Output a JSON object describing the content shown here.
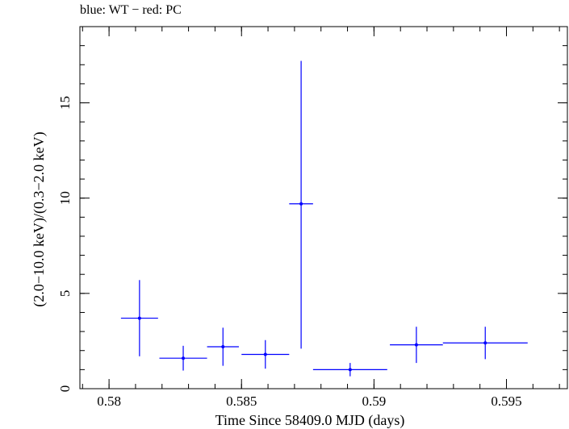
{
  "chart_data": {
    "type": "scatter",
    "title": "blue: WT − red: PC",
    "xlabel": "Time Since 58409.0 MJD (days)",
    "ylabel": "(2.0−10.0 keV)/(0.3−2.0 keV)",
    "xlim": [
      0.5789,
      0.5973
    ],
    "ylim": [
      0,
      19
    ],
    "xticks": {
      "major": [
        0.58,
        0.585,
        0.59,
        0.595
      ],
      "labels": [
        "0.58",
        "0.585",
        "0.59",
        "0.595"
      ],
      "minor_step": 0.001
    },
    "yticks": {
      "major": [
        0,
        5,
        10,
        15
      ],
      "labels": [
        "0",
        "5",
        "10",
        "15"
      ],
      "minor_step": 1
    },
    "grid": false,
    "series": [
      {
        "color": "#0000ff",
        "points": [
          {
            "x": 0.58115,
            "xerr_lo": 0.0007,
            "xerr_hi": 0.0007,
            "y": 3.7,
            "yerr_lo": 2.0,
            "yerr_hi": 2.0
          },
          {
            "x": 0.5828,
            "xerr_lo": 0.0009,
            "xerr_hi": 0.0009,
            "y": 1.6,
            "yerr_lo": 0.65,
            "yerr_hi": 0.65
          },
          {
            "x": 0.5843,
            "xerr_lo": 0.0006,
            "xerr_hi": 0.0006,
            "y": 2.2,
            "yerr_lo": 1.0,
            "yerr_hi": 1.0
          },
          {
            "x": 0.5859,
            "xerr_lo": 0.0009,
            "xerr_hi": 0.0009,
            "y": 1.8,
            "yerr_lo": 0.75,
            "yerr_hi": 0.75
          },
          {
            "x": 0.58725,
            "xerr_lo": 0.00045,
            "xerr_hi": 0.00045,
            "y": 9.7,
            "yerr_lo": 7.6,
            "yerr_hi": 7.5
          },
          {
            "x": 0.5891,
            "xerr_lo": 0.0014,
            "xerr_hi": 0.0014,
            "y": 1.0,
            "yerr_lo": 0.35,
            "yerr_hi": 0.35
          },
          {
            "x": 0.5916,
            "xerr_lo": 0.001,
            "xerr_hi": 0.001,
            "y": 2.3,
            "yerr_lo": 0.95,
            "yerr_hi": 0.95
          },
          {
            "x": 0.5942,
            "xerr_lo": 0.0016,
            "xerr_hi": 0.0016,
            "y": 2.4,
            "yerr_lo": 0.85,
            "yerr_hi": 0.85
          }
        ]
      }
    ]
  }
}
